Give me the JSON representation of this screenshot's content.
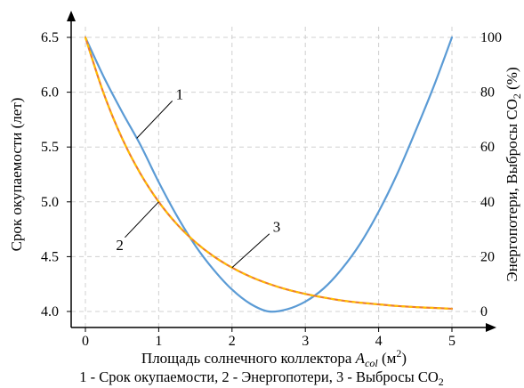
{
  "chart_data": {
    "type": "line",
    "xlabel_main": "Площадь солнечного коллектора ",
    "xlabel_var": "A",
    "xlabel_sub": "col",
    "xlabel_unit_pre": " (м",
    "xlabel_unit_sup": "2",
    "xlabel_unit_post": ")",
    "ylabel_left": "Срок окупаемости (лет)",
    "ylabel_right_pre": "Энергопотери, Выбросы CO",
    "ylabel_right_sub": "2",
    "ylabel_right_post": " (%)",
    "xlim": [
      0,
      5
    ],
    "ylim_left": [
      4.0,
      6.5
    ],
    "ylim_right": [
      0,
      100
    ],
    "x_ticks": [
      "0",
      "1",
      "2",
      "3",
      "4",
      "5"
    ],
    "y_left_ticks": [
      "4.0",
      "4.5",
      "5.0",
      "5.5",
      "6.0",
      "6.5"
    ],
    "y_right_ticks": [
      "0",
      "20",
      "40",
      "60",
      "80",
      "100"
    ],
    "grid": true,
    "series": [
      {
        "name": "1",
        "axis": "left",
        "color": "#5b9bd5",
        "style": "solid",
        "x": [
          0,
          0.25,
          0.5,
          0.75,
          1.0,
          1.25,
          1.5,
          1.75,
          2.0,
          2.25,
          2.5,
          2.75,
          3.0,
          3.25,
          3.5,
          3.75,
          4.0,
          4.25,
          4.5,
          4.75,
          5.0
        ],
        "y": [
          6.5,
          6.14,
          5.82,
          5.52,
          5.18,
          4.87,
          4.6,
          4.38,
          4.2,
          4.07,
          4.0,
          4.02,
          4.09,
          4.21,
          4.39,
          4.62,
          4.91,
          5.25,
          5.64,
          6.05,
          6.5
        ]
      },
      {
        "name": "2",
        "axis": "right",
        "color": "#ed7d31",
        "style": "solid",
        "x": [
          0,
          0.25,
          0.5,
          0.75,
          1.0,
          1.25,
          1.5,
          1.75,
          2.0,
          2.25,
          2.5,
          2.75,
          3.0,
          3.25,
          3.5,
          3.75,
          4.0,
          4.25,
          4.5,
          4.75,
          5.0
        ],
        "y": [
          100,
          79.5,
          63.2,
          50.3,
          40.0,
          31.8,
          25.3,
          20.1,
          16.0,
          12.7,
          10.1,
          8.0,
          6.4,
          5.1,
          4.0,
          3.2,
          2.6,
          2.0,
          1.6,
          1.3,
          1.0
        ]
      },
      {
        "name": "3",
        "axis": "right",
        "color": "#ffc000",
        "style": "dashed",
        "x": [
          0,
          0.25,
          0.5,
          0.75,
          1.0,
          1.25,
          1.5,
          1.75,
          2.0,
          2.25,
          2.5,
          2.75,
          3.0,
          3.25,
          3.5,
          3.75,
          4.0,
          4.25,
          4.5,
          4.75,
          5.0
        ],
        "y": [
          100,
          79.5,
          63.2,
          50.3,
          40.0,
          31.8,
          25.3,
          20.1,
          16.0,
          12.7,
          10.1,
          8.0,
          6.4,
          5.1,
          4.0,
          3.2,
          2.6,
          2.0,
          1.6,
          1.3,
          1.0
        ]
      }
    ],
    "annotations": [
      {
        "label": "1",
        "series": "1",
        "at_x": 0.7
      },
      {
        "label": "2",
        "series": "2",
        "at_x": 1.0
      },
      {
        "label": "3",
        "series": "3",
        "at_x": 2.0
      }
    ],
    "caption_pre": "1 - Срок окупаемости, 2 - Энергопотери, 3 - Выбросы CO",
    "caption_sub": "2"
  }
}
